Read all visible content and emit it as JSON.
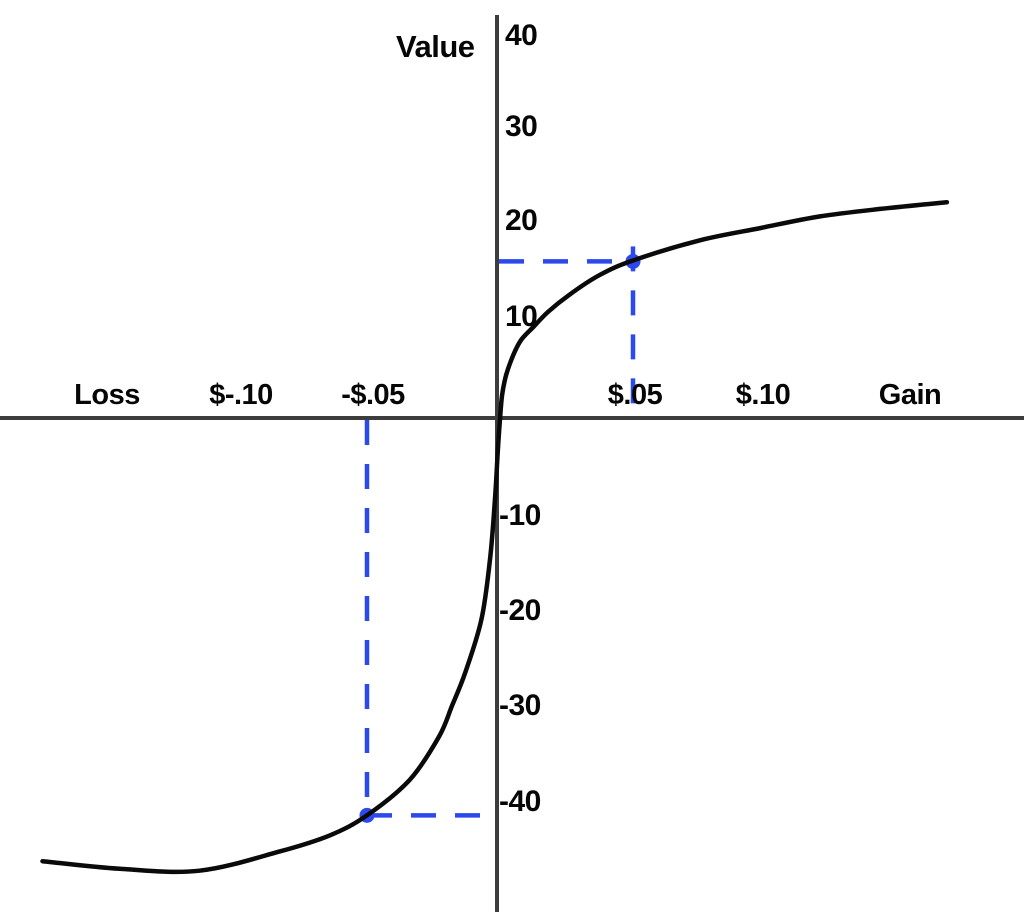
{
  "chart_data": {
    "type": "line",
    "title": "",
    "description": "S-shaped value function through the origin: concave for gains, convex and steeper for losses",
    "ylabel": "Value",
    "x_left_label": "Loss",
    "x_right_label": "Gain",
    "y_tick_values": [
      40,
      30,
      20,
      10,
      -10,
      -20,
      -30,
      -40
    ],
    "y_tick_labels": [
      "40",
      "30",
      "20",
      "10",
      "-10",
      "-20",
      "-30",
      "-40"
    ],
    "x_tick_values_cents": [
      -10,
      -5,
      5,
      10
    ],
    "x_tick_labels": [
      "$-.10",
      "-$.05",
      "$.05",
      "$.10"
    ],
    "xlim_cents": [
      -19,
      19
    ],
    "ylim": [
      -50,
      44
    ],
    "grid": false,
    "curve_points": [
      [
        -17.2,
        -46.3
      ],
      [
        -14.3,
        -47.1
      ],
      [
        -11.3,
        -47.3
      ],
      [
        -8.3,
        -45.3
      ],
      [
        -6.4,
        -43.6
      ],
      [
        -5.0,
        -41.5
      ],
      [
        -3.4,
        -37.8
      ],
      [
        -2.3,
        -33.3
      ],
      [
        -1.8,
        -30.0
      ],
      [
        -1.3,
        -26.5
      ],
      [
        -0.7,
        -21.0
      ],
      [
        -0.38,
        -14.8
      ],
      [
        -0.19,
        -8.5
      ],
      [
        -0.08,
        -3.2
      ],
      [
        0,
        0
      ],
      [
        0.08,
        2.5
      ],
      [
        0.23,
        4.6
      ],
      [
        0.5,
        6.7
      ],
      [
        0.8,
        8.3
      ],
      [
        1.24,
        9.6
      ],
      [
        1.8,
        11.2
      ],
      [
        2.6,
        13.0
      ],
      [
        3.76,
        15.1
      ],
      [
        5.0,
        16.6
      ],
      [
        7.5,
        18.7
      ],
      [
        9.8,
        20.0
      ],
      [
        12.0,
        21.2
      ],
      [
        14.3,
        22.0
      ],
      [
        16.8,
        22.7
      ]
    ],
    "annotations": [
      {
        "name": "gain-example-point",
        "x_cents": 5,
        "x_label": "$.05",
        "value": 16.5
      },
      {
        "name": "loss-example-point",
        "x_cents": -5,
        "x_label": "-$.05",
        "value": -41.5
      }
    ],
    "colors": {
      "curve": "#0a0a0a",
      "axis": "#3d3d3d",
      "annotation": "#2b49ec",
      "background": "#ffffff",
      "text": "#060606"
    }
  }
}
